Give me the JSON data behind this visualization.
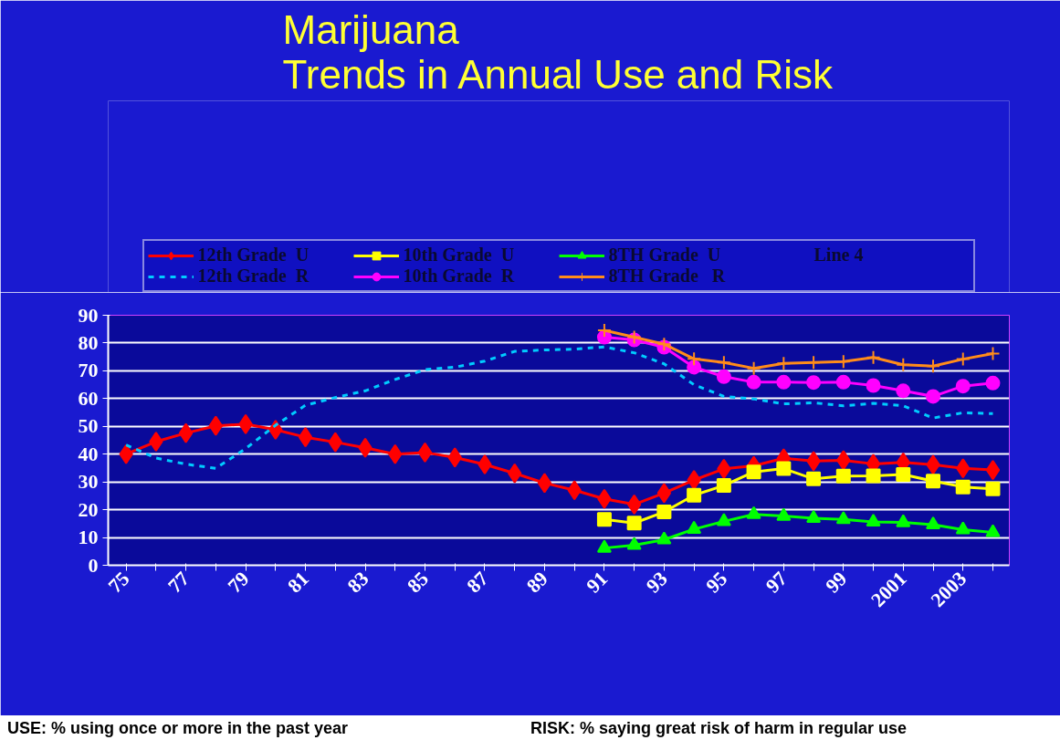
{
  "chart_data": {
    "type": "line",
    "title": "Marijuana\nTrends in Annual Use and Risk",
    "categories": [
      "75",
      null,
      "77",
      null,
      "79",
      null,
      "81",
      null,
      "83",
      null,
      "85",
      null,
      "87",
      null,
      "89",
      null,
      "91",
      null,
      "93",
      null,
      "95",
      null,
      "97",
      null,
      "99",
      null,
      "2001",
      null,
      "2003",
      null
    ],
    "series": [
      {
        "name": "12th Grade  U",
        "color": "#ff0000",
        "marker": "diamond",
        "line_style": "solid",
        "values": [
          40.0,
          44.5,
          47.6,
          50.2,
          50.8,
          48.8,
          46.1,
          44.3,
          42.3,
          40.0,
          40.6,
          38.8,
          36.3,
          33.1,
          29.6,
          27.0,
          23.9,
          21.9,
          26.0,
          30.7,
          34.7,
          35.8,
          38.5,
          37.5,
          37.8,
          36.5,
          37.0,
          36.2,
          34.9,
          34.3
        ]
      },
      {
        "name": "10th Grade  U",
        "color": "#ffff00",
        "marker": "square",
        "line_style": "solid",
        "values": [
          null,
          null,
          null,
          null,
          null,
          null,
          null,
          null,
          null,
          null,
          null,
          null,
          null,
          null,
          null,
          null,
          16.5,
          15.2,
          19.2,
          25.2,
          28.7,
          33.6,
          34.8,
          31.1,
          32.1,
          32.2,
          32.7,
          30.3,
          28.2,
          27.5
        ]
      },
      {
        "name": "8TH Grade  U",
        "color": "#00ff00",
        "marker": "triangle",
        "line_style": "solid",
        "values": [
          null,
          null,
          null,
          null,
          null,
          null,
          null,
          null,
          null,
          null,
          null,
          null,
          null,
          null,
          null,
          null,
          6.2,
          7.2,
          9.2,
          13.0,
          15.8,
          18.3,
          17.7,
          16.9,
          16.5,
          15.6,
          15.4,
          14.6,
          12.8,
          11.8
        ]
      },
      {
        "name": "Line 4",
        "values": [
          null,
          null,
          null,
          null,
          null,
          null,
          null,
          null,
          null,
          null,
          null,
          null,
          null,
          null,
          null,
          null,
          null,
          null,
          null,
          null,
          null,
          null,
          null,
          null,
          null,
          null,
          null,
          null,
          null,
          null
        ]
      },
      {
        "name": "12th Grade  R",
        "color": "#00ccff",
        "marker": "none",
        "line_style": "dashed",
        "values": [
          43.3,
          38.6,
          36.4,
          34.9,
          42.0,
          50.4,
          57.6,
          60.4,
          62.8,
          66.9,
          70.4,
          71.3,
          73.5,
          77.0,
          77.5,
          77.8,
          78.6,
          76.5,
          72.5,
          65.0,
          60.8,
          59.9,
          58.1,
          58.5,
          57.4,
          58.3,
          57.4,
          53.0,
          54.9,
          54.6
        ]
      },
      {
        "name": "10th Grade  R",
        "color": "#ff00ff",
        "marker": "circle",
        "line_style": "solid",
        "values": [
          null,
          null,
          null,
          null,
          null,
          null,
          null,
          null,
          null,
          null,
          null,
          null,
          null,
          null,
          null,
          null,
          82.1,
          81.1,
          78.5,
          71.3,
          67.9,
          65.9,
          65.9,
          65.8,
          65.9,
          64.7,
          62.8,
          60.8,
          64.5,
          65.6
        ]
      },
      {
        "name": "8TH Grade   R",
        "color": "#ff8c1a",
        "marker": "cross",
        "line_style": "solid",
        "values": [
          null,
          null,
          null,
          null,
          null,
          null,
          null,
          null,
          null,
          null,
          null,
          null,
          null,
          null,
          null,
          null,
          84.6,
          82.1,
          79.6,
          74.3,
          73.0,
          70.9,
          72.7,
          73.0,
          73.3,
          74.8,
          72.2,
          71.7,
          74.2,
          76.2
        ]
      }
    ],
    "ylim": [
      0,
      90
    ],
    "yticks": [
      0,
      10,
      20,
      30,
      40,
      50,
      60,
      70,
      80,
      90
    ],
    "grid": "y",
    "legend": "top",
    "annotations": [
      "USE: % using once or more in the past year",
      "RISK: % saying great risk of harm in regular use"
    ]
  }
}
